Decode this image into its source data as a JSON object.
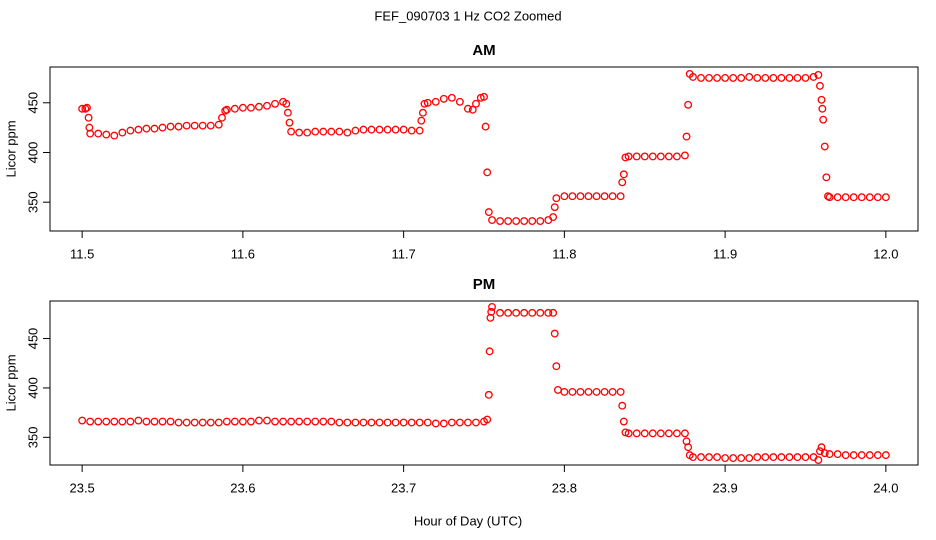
{
  "title": "FEF_090703  1 Hz CO2 Zoomed",
  "x_label": "Hour of Day (UTC)",
  "chart_data": [
    {
      "type": "scatter",
      "title": "AM",
      "y_label": "Licor ppm",
      "color": "#ff0000",
      "xlim": [
        11.48,
        12.02
      ],
      "ylim": [
        321,
        486
      ],
      "xticks": [
        11.5,
        11.6,
        11.7,
        11.8,
        11.9,
        {
          "value": 12,
          "label": "12.0"
        }
      ],
      "yticks": [
        350,
        400,
        450
      ],
      "x": [
        11.5,
        11.502,
        11.503,
        11.504,
        11.5045,
        11.505,
        11.51,
        11.515,
        11.52,
        11.525,
        11.53,
        11.535,
        11.54,
        11.545,
        11.55,
        11.555,
        11.56,
        11.565,
        11.57,
        11.575,
        11.58,
        11.585,
        11.587,
        11.589,
        11.59,
        11.595,
        11.6,
        11.605,
        11.61,
        11.615,
        11.62,
        11.625,
        11.627,
        11.628,
        11.629,
        11.63,
        11.635,
        11.64,
        11.645,
        11.65,
        11.655,
        11.66,
        11.665,
        11.67,
        11.675,
        11.68,
        11.685,
        11.69,
        11.695,
        11.7,
        11.705,
        11.71,
        11.711,
        11.712,
        11.713,
        11.715,
        11.72,
        11.725,
        11.73,
        11.735,
        11.74,
        11.743,
        11.745,
        11.748,
        11.75,
        11.751,
        11.752,
        11.753,
        11.755,
        11.76,
        11.765,
        11.77,
        11.775,
        11.78,
        11.785,
        11.79,
        11.793,
        11.794,
        11.795,
        11.8,
        11.805,
        11.81,
        11.815,
        11.82,
        11.825,
        11.83,
        11.835,
        11.836,
        11.837,
        11.838,
        11.84,
        11.845,
        11.85,
        11.855,
        11.86,
        11.865,
        11.87,
        11.875,
        11.876,
        11.877,
        11.878,
        11.88,
        11.885,
        11.89,
        11.895,
        11.9,
        11.905,
        11.91,
        11.915,
        11.92,
        11.925,
        11.93,
        11.935,
        11.94,
        11.945,
        11.95,
        11.955,
        11.958,
        11.959,
        11.96,
        11.9605,
        11.961,
        11.962,
        11.963,
        11.964,
        11.965,
        11.97,
        11.975,
        11.98,
        11.985,
        11.99,
        11.995,
        12
      ],
      "values": [
        444,
        444,
        445,
        435,
        425,
        419,
        419,
        418,
        417,
        420,
        422,
        423,
        424,
        424,
        425,
        426,
        426,
        427,
        427,
        427,
        427,
        428,
        435,
        442,
        443,
        444,
        445,
        445,
        446,
        447,
        449,
        451,
        449,
        440,
        430,
        421,
        420,
        420,
        421,
        421,
        421,
        421,
        420,
        422,
        423,
        423,
        423,
        423,
        423,
        423,
        422,
        422,
        432,
        440,
        449,
        450,
        451,
        454,
        455,
        451,
        444,
        443,
        449,
        455,
        456,
        426,
        380,
        340,
        332,
        331,
        331,
        331,
        331,
        331,
        331,
        332,
        335,
        345,
        354,
        356,
        356,
        356,
        356,
        356,
        356,
        356,
        356,
        370,
        378,
        395,
        396,
        396,
        396,
        396,
        396,
        396,
        396,
        397,
        416,
        448,
        479,
        476,
        475,
        475,
        475,
        475,
        475,
        475,
        476,
        475,
        475,
        475,
        475,
        475,
        475,
        475,
        476,
        478,
        467,
        453,
        444,
        433,
        406,
        375,
        356,
        355,
        355,
        355,
        355,
        355,
        355,
        355,
        355
      ]
    },
    {
      "type": "scatter",
      "title": "PM",
      "y_label": "Licor ppm",
      "color": "#ff0000",
      "xlim": [
        23.48,
        24.02
      ],
      "ylim": [
        322,
        488
      ],
      "xticks": [
        23.5,
        23.6,
        23.7,
        23.8,
        23.9,
        {
          "value": 24,
          "label": "24.0"
        }
      ],
      "yticks": [
        350,
        400,
        450
      ],
      "x": [
        23.5,
        23.505,
        23.51,
        23.515,
        23.52,
        23.525,
        23.53,
        23.535,
        23.54,
        23.545,
        23.55,
        23.555,
        23.56,
        23.565,
        23.57,
        23.575,
        23.58,
        23.585,
        23.59,
        23.595,
        23.6,
        23.605,
        23.61,
        23.615,
        23.62,
        23.625,
        23.63,
        23.635,
        23.64,
        23.645,
        23.65,
        23.655,
        23.66,
        23.665,
        23.67,
        23.675,
        23.68,
        23.685,
        23.69,
        23.695,
        23.7,
        23.705,
        23.71,
        23.715,
        23.72,
        23.725,
        23.73,
        23.735,
        23.74,
        23.745,
        23.75,
        23.752,
        23.753,
        23.7535,
        23.754,
        23.7545,
        23.755,
        23.76,
        23.765,
        23.77,
        23.775,
        23.78,
        23.785,
        23.79,
        23.793,
        23.794,
        23.795,
        23.796,
        23.8,
        23.805,
        23.81,
        23.815,
        23.82,
        23.825,
        23.83,
        23.835,
        23.836,
        23.837,
        23.838,
        23.84,
        23.845,
        23.85,
        23.855,
        23.86,
        23.865,
        23.87,
        23.875,
        23.876,
        23.877,
        23.878,
        23.88,
        23.885,
        23.89,
        23.895,
        23.9,
        23.905,
        23.91,
        23.915,
        23.92,
        23.925,
        23.93,
        23.935,
        23.94,
        23.945,
        23.95,
        23.955,
        23.958,
        23.959,
        23.96,
        23.962,
        23.965,
        23.97,
        23.975,
        23.98,
        23.985,
        23.99,
        23.995,
        24
      ],
      "values": [
        367,
        366,
        366,
        366,
        366,
        366,
        366,
        367,
        366,
        366,
        366,
        366,
        365,
        365,
        365,
        365,
        365,
        365,
        366,
        366,
        366,
        366,
        367,
        367,
        366,
        366,
        366,
        366,
        366,
        366,
        366,
        366,
        365,
        365,
        365,
        365,
        365,
        365,
        365,
        365,
        365,
        365,
        365,
        365,
        364,
        364,
        365,
        365,
        365,
        365,
        366,
        368,
        393,
        437,
        471,
        477,
        482,
        476,
        476,
        476,
        476,
        476,
        476,
        476,
        476,
        455,
        422,
        398,
        396,
        396,
        396,
        396,
        396,
        396,
        396,
        396,
        382,
        366,
        355,
        354,
        354,
        354,
        354,
        354,
        354,
        354,
        354,
        346,
        340,
        332,
        330,
        330,
        330,
        330,
        329,
        329,
        329,
        329,
        330,
        330,
        330,
        330,
        330,
        330,
        330,
        330,
        327,
        336,
        340,
        334,
        333,
        333,
        332,
        332,
        332,
        332,
        332,
        332
      ]
    }
  ]
}
